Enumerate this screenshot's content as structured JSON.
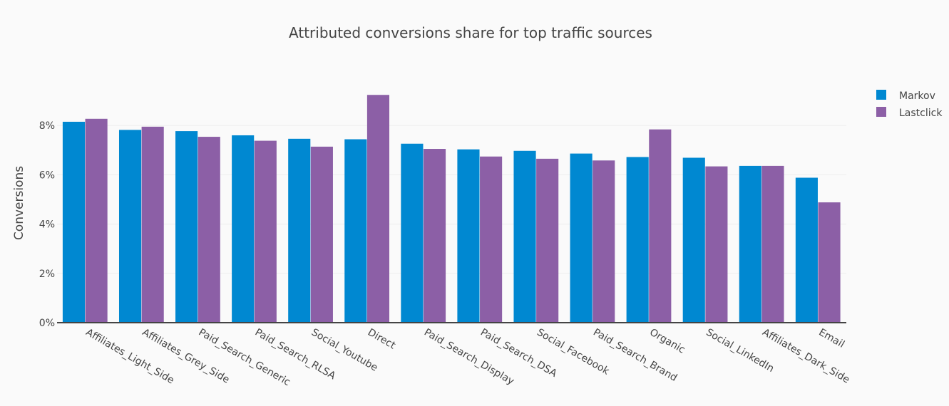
{
  "chart_data": {
    "type": "bar",
    "title": "Attributed conversions share for top traffic sources",
    "xlabel": "",
    "ylabel": "Conversions",
    "ylim": [
      0,
      10.2
    ],
    "yticks": [
      0,
      2,
      4,
      6,
      8
    ],
    "ytick_labels": [
      "0%",
      "2%",
      "4%",
      "6%",
      "8%"
    ],
    "grid": true,
    "legend_position": "top-right",
    "categories": [
      "Affiliates_Light_Side",
      "Affiliates_Grey_Side",
      "Paid_Search_Generic",
      "Paid_Search_RLSA",
      "Social_Youtube",
      "Direct",
      "Paid_Search_Display",
      "Paid_Search_DSA",
      "Social_Facebook",
      "Paid_Search_Brand",
      "Organic",
      "Social_LinkedIn",
      "Affiliates_Dark_Side",
      "Email"
    ],
    "series": [
      {
        "name": "Markov",
        "color": "#0088d1",
        "values": [
          8.15,
          7.82,
          7.77,
          7.6,
          7.46,
          7.44,
          7.26,
          7.03,
          6.97,
          6.86,
          6.72,
          6.69,
          6.36,
          5.88
        ]
      },
      {
        "name": "Lastclick",
        "color": "#8c5fa6",
        "values": [
          8.27,
          7.95,
          7.54,
          7.38,
          7.14,
          9.24,
          7.05,
          6.74,
          6.65,
          6.58,
          7.84,
          6.34,
          6.36,
          4.88
        ]
      }
    ]
  }
}
